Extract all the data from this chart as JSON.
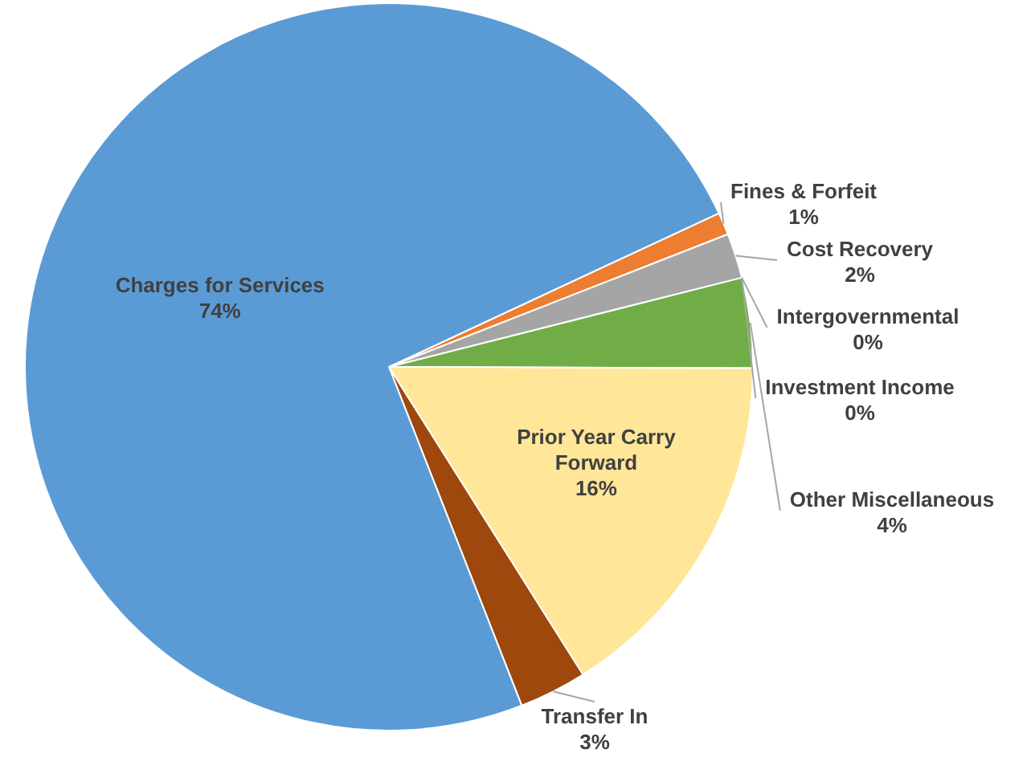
{
  "chart_data": {
    "type": "pie",
    "categories": [
      "Fines & Forfeit",
      "Cost Recovery",
      "Intergovernmental",
      "Investment Income",
      "Other Miscellaneous",
      "Prior Year Carry Forward",
      "Transfer In",
      "Charges for Services"
    ],
    "values": [
      1,
      2,
      0,
      0,
      4,
      16,
      3,
      74
    ],
    "colors": [
      "#ed7d31",
      "#a5a5a5",
      "#ffc000",
      "#4472c4",
      "#70ad47",
      "#ffe699",
      "#9e480e",
      "#5b9bd5"
    ],
    "value_labels": [
      "1%",
      "2%",
      "0%",
      "0%",
      "4%",
      "16%",
      "3%",
      "74%"
    ]
  }
}
